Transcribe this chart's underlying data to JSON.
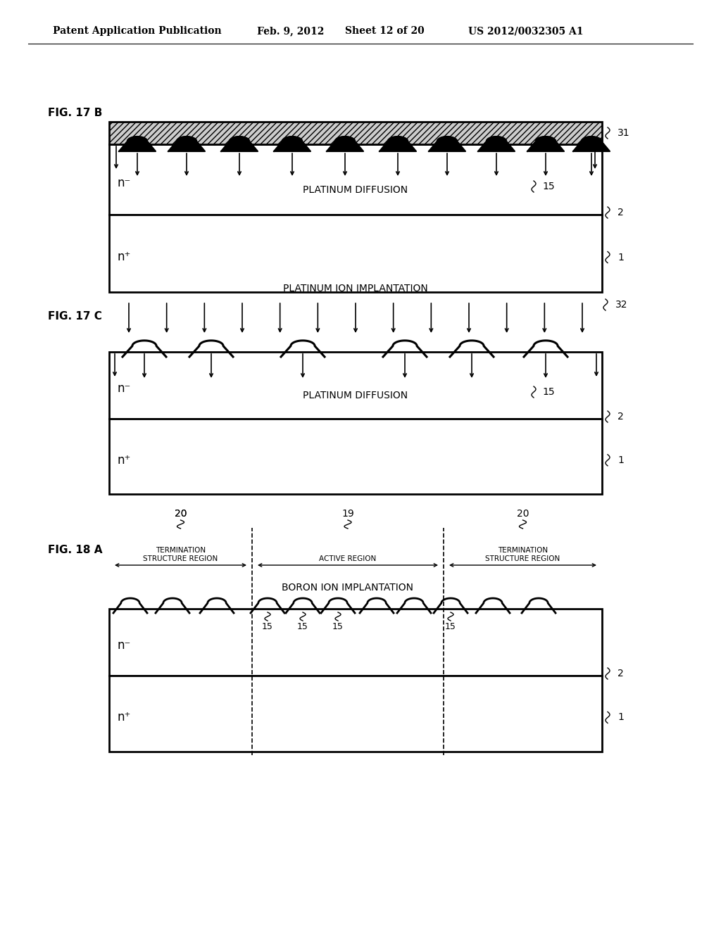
{
  "bg_color": "#ffffff",
  "header_text": "Patent Application Publication",
  "header_date": "Feb. 9, 2012",
  "header_sheet": "Sheet 12 of 20",
  "header_patent": "US 2012/0032305 A1",
  "fig17b_label": "FIG. 17 B",
  "fig17c_label": "FIG. 17 C",
  "fig18a_label": "FIG. 18 A"
}
